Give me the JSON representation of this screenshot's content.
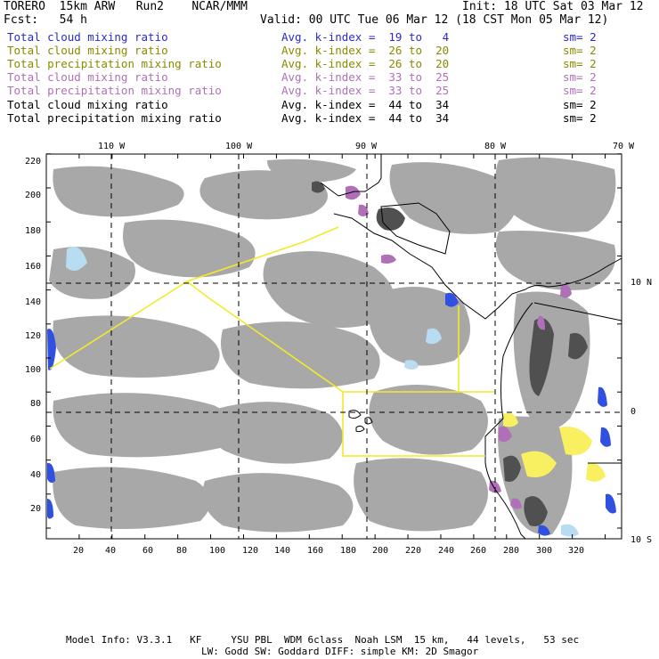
{
  "header": {
    "model": "TORERO  15km ARW   Run2    NCAR/MMM",
    "init": "Init: 18 UTC Sat 03 Mar 12",
    "fcst": "Fcst:   54 h",
    "valid": "Valid: 00 UTC Tue 06 Mar 12 (18 CST Mon 05 Mar 12)"
  },
  "legend": [
    {
      "field": "Total cloud mixing ratio",
      "index": "Avg. k-index =  19 to   4",
      "sm": "sm= 2",
      "color": "#2a2acc"
    },
    {
      "field": "Total cloud mixing ratio",
      "index": "Avg. k-index =  26 to  20",
      "sm": "sm= 2",
      "color": "#8a8a00"
    },
    {
      "field": "Total precipitation mixing ratio",
      "index": "Avg. k-index =  26 to  20",
      "sm": "sm= 2",
      "color": "#8a8a00"
    },
    {
      "field": "Total cloud mixing ratio",
      "index": "Avg. k-index =  33 to  25",
      "sm": "sm= 2",
      "color": "#b070b8"
    },
    {
      "field": "Total precipitation mixing ratio",
      "index": "Avg. k-index =  33 to  25",
      "sm": "sm= 2",
      "color": "#b070b8"
    },
    {
      "field": "Total cloud mixing ratio",
      "index": "Avg. k-index =  44 to  34",
      "sm": "sm= 2",
      "color": "#000000"
    },
    {
      "field": "Total precipitation mixing ratio",
      "index": "Avg. k-index =  44 to  34",
      "sm": "sm= 2",
      "color": "#000000"
    }
  ],
  "axes": {
    "lon_labels": [
      "110 W",
      "100 W",
      "90 W",
      "80 W",
      "70 W"
    ],
    "lat_labels": [
      "10 N",
      "0",
      "10 S"
    ],
    "y_grid": [
      "220",
      "200",
      "180",
      "160",
      "140",
      "120",
      "100",
      "80",
      "60",
      "40",
      "20"
    ],
    "x_grid": [
      "20",
      "40",
      "60",
      "80",
      "100",
      "120",
      "140",
      "160",
      "180",
      "200",
      "220",
      "240",
      "260",
      "280",
      "300",
      "320"
    ]
  },
  "colors": {
    "cloud_gray": "#a8a8a8",
    "dark_gray": "#505050",
    "yellow_line": "#f2ea2a",
    "blue": "#3050e0",
    "light_blue": "#b8dcf2",
    "purple": "#b070b8",
    "yellow_fill": "#f8f060"
  },
  "footer": {
    "line1": "Model Info: V3.3.1   KF     YSU PBL  WDM 6class  Noah LSM  15 km,   44 levels,   53 sec",
    "line2": "LW: Godd SW: Goddard DIFF: simple KM: 2D Smagor"
  }
}
